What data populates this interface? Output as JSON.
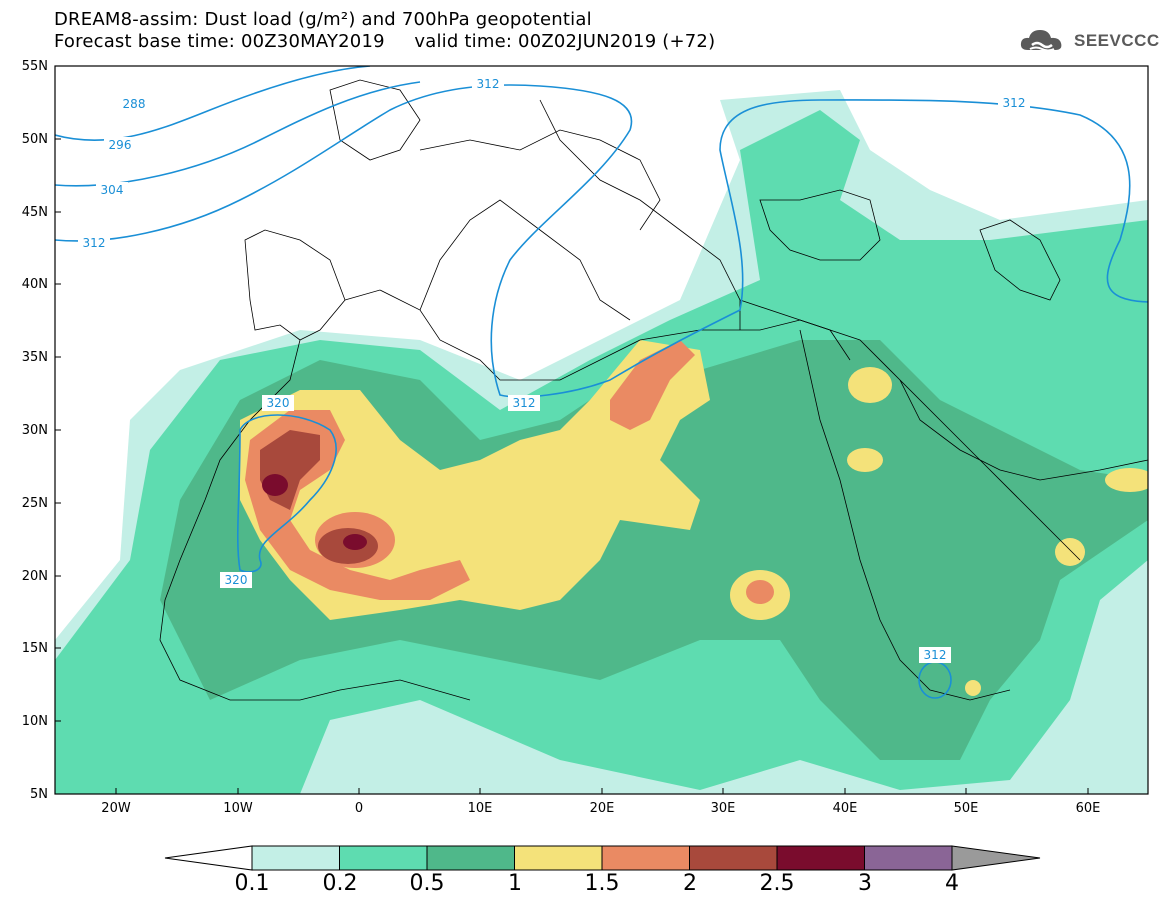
{
  "header": {
    "title_line1": "DREAM8-assim: Dust load (g/m²) and 700hPa geopotential",
    "title_line2": "Forecast base time: 00Z30MAY2019     valid time: 00Z02JUN2019 (+72)"
  },
  "brand": {
    "name": "SEEVCCC",
    "icon": "cloud-logo-icon",
    "color": "#5a5a5a"
  },
  "map": {
    "projection": "lat-lon",
    "lon_range": [
      -25,
      65
    ],
    "lat_range": [
      5,
      55
    ],
    "lat_labels": [
      "55N",
      "50N",
      "45N",
      "40N",
      "35N",
      "30N",
      "25N",
      "20N",
      "15N",
      "10N",
      "5N"
    ],
    "lon_labels": [
      "20W",
      "10W",
      "0",
      "10E",
      "20E",
      "30E",
      "40E",
      "50E",
      "60E"
    ],
    "geopotential_labels": [
      "288",
      "296",
      "304",
      "312",
      "312",
      "312",
      "312",
      "320",
      "320",
      "312"
    ],
    "contour_color": "#1a8fd6"
  },
  "colorbar": {
    "labels": [
      "0.1",
      "0.2",
      "0.5",
      "1",
      "1.5",
      "2",
      "2.5",
      "3",
      "4"
    ],
    "colors": [
      "#c3efe6",
      "#5edcb0",
      "#4fb88a",
      "#f4e27a",
      "#ea8a63",
      "#a8493c",
      "#7a0c2d",
      "#8a6596",
      "#9a9a9a"
    ]
  }
}
